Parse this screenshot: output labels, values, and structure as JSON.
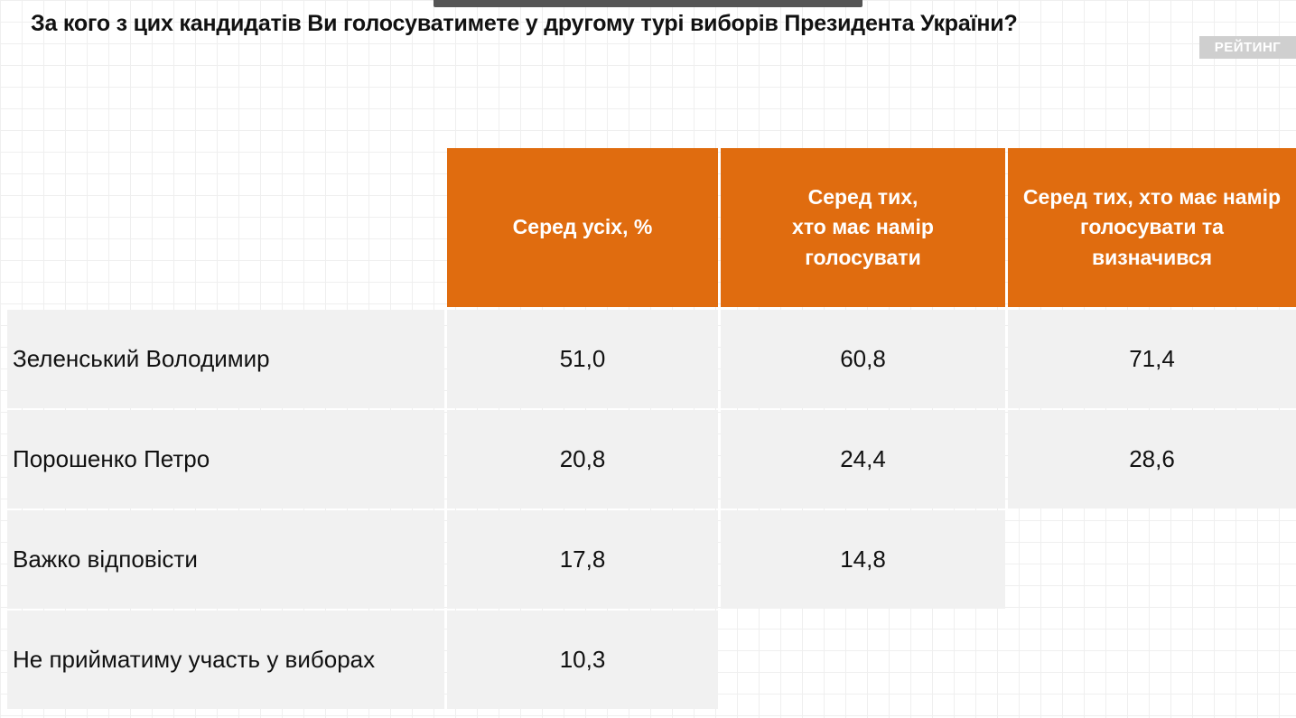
{
  "title": "За кого з цих кандидатів Ви голосуватимете у другому турі виборів Президента України?",
  "logo_text": "РЕЙТИНГ",
  "colors": {
    "header_bg": "#e06c0f",
    "row_bg": "#f1f1f1"
  },
  "chart_data": {
    "type": "table",
    "title": "За кого з цих кандидатів Ви голосуватимете у другому турі виборів Президента України?",
    "columns": [
      "Серед усіх, %",
      "Серед тих,\nхто має намір\nголосувати",
      "Серед тих, хто має намір\nголосувати та\nвизначився"
    ],
    "rows": [
      {
        "label": "Зеленський Володимир",
        "values": [
          "51,0",
          "60,8",
          "71,4"
        ]
      },
      {
        "label": "Порошенко Петро",
        "values": [
          "20,8",
          "24,4",
          "28,6"
        ]
      },
      {
        "label": "Важко відповісти",
        "values": [
          "17,8",
          "14,8",
          null
        ]
      },
      {
        "label": "Не прийматиму участь у виборах",
        "values": [
          "10,3",
          null,
          null
        ]
      }
    ]
  }
}
